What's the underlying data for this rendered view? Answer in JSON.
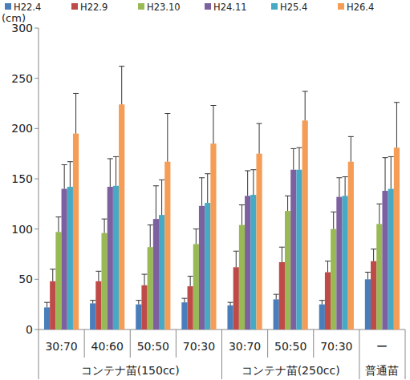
{
  "chart_data": {
    "type": "bar",
    "y_label": "(cm)",
    "categories": [
      "30:70",
      "40:60",
      "50:50",
      "70:30",
      "30:70",
      "50:50",
      "70:30",
      "ー"
    ],
    "category_groups": [
      {
        "label": "コンテナ苗(150cc)",
        "count": 4
      },
      {
        "label": "コンテナ苗(250cc)",
        "count": 3
      },
      {
        "label": "普通苗",
        "count": 1
      }
    ],
    "series": [
      {
        "name": "H22.4",
        "color": "#4a7ebb",
        "values": [
          22,
          26,
          25,
          27,
          24,
          30,
          25,
          50
        ],
        "errors": [
          5,
          3,
          4,
          4,
          3,
          5,
          4,
          7
        ]
      },
      {
        "name": "H22.9",
        "color": "#be4b48",
        "values": [
          48,
          48,
          44,
          43,
          62,
          67,
          57,
          68
        ],
        "errors": [
          12,
          10,
          11,
          10,
          16,
          15,
          11,
          12
        ]
      },
      {
        "name": "H23.10",
        "color": "#98b954",
        "values": [
          97,
          96,
          82,
          85,
          104,
          118,
          100,
          105
        ],
        "errors": [
          15,
          14,
          22,
          15,
          20,
          15,
          17,
          20
        ]
      },
      {
        "name": "H24.11",
        "color": "#7d60a0",
        "values": [
          140,
          142,
          110,
          123,
          133,
          159,
          132,
          138
        ],
        "errors": [
          24,
          28,
          33,
          28,
          25,
          21,
          19,
          33
        ]
      },
      {
        "name": "H25.4",
        "color": "#46aac5",
        "values": [
          142,
          143,
          114,
          126,
          134,
          159,
          133,
          140
        ],
        "errors": [
          25,
          29,
          35,
          29,
          25,
          22,
          19,
          32
        ]
      },
      {
        "name": "H26.4",
        "color": "#f59d56",
        "values": [
          195,
          224,
          167,
          185,
          175,
          208,
          167,
          181
        ],
        "errors": [
          40,
          38,
          48,
          38,
          30,
          29,
          25,
          45
        ]
      }
    ],
    "ylim": [
      0,
      300
    ],
    "yticks": [
      0,
      50,
      100,
      150,
      200,
      250,
      300
    ],
    "grid": false,
    "legend": "top"
  }
}
